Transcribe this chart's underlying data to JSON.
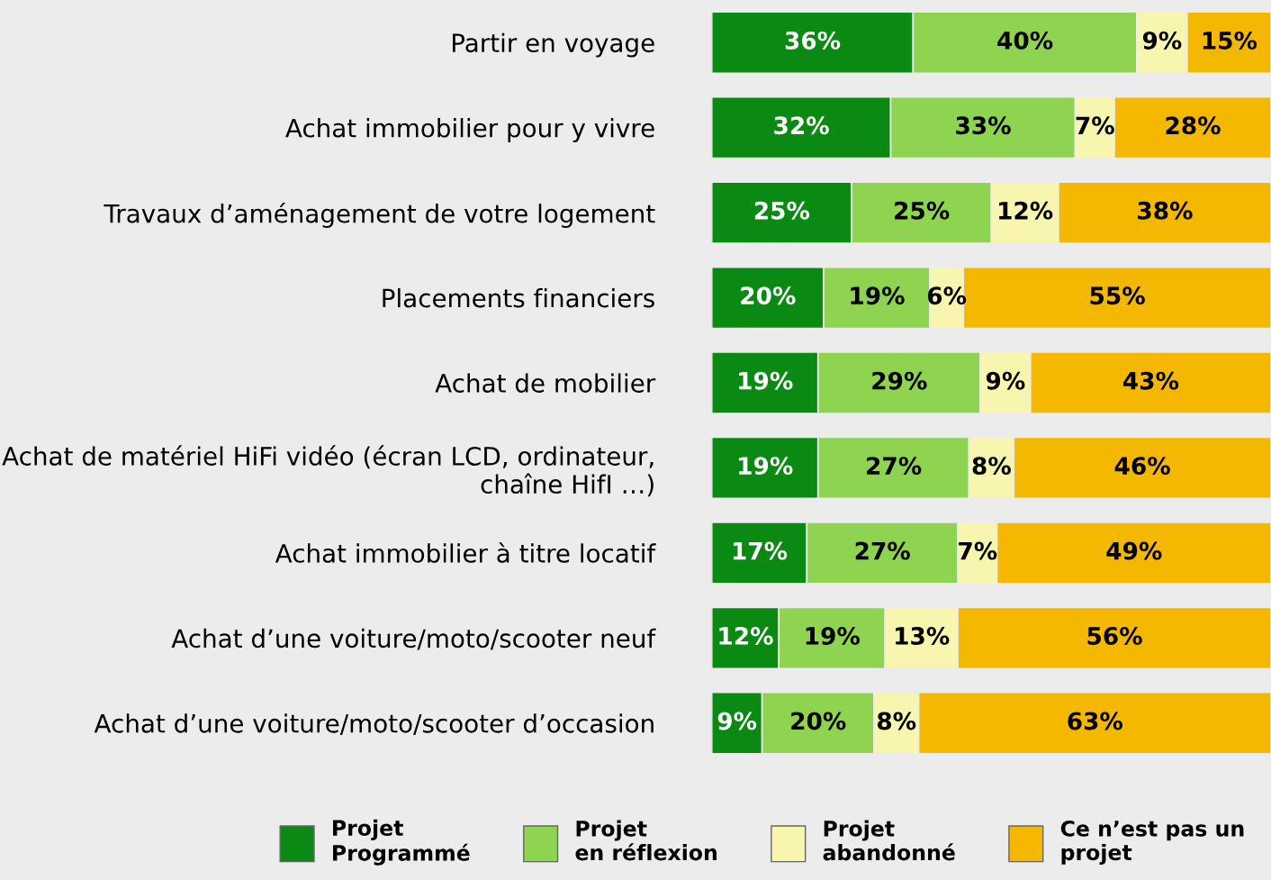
{
  "chart_data": {
    "type": "bar",
    "orientation": "horizontal",
    "stacked": true,
    "legend": "bottom",
    "grid": false,
    "tick_labels": "y",
    "categories": [
      "Partir en voyage",
      "Achat immobilier pour y vivre",
      "Travaux d’aménagement de votre logement",
      "Placements financiers",
      "Achat de mobilier",
      "Achat de matériel HiFi vidéo (écran LCD, ordinateur,\nchaîne HifI …)",
      "Achat immobilier à titre locatif",
      "Achat d’une voiture/moto/scooter neuf",
      "Achat d’une voiture/moto/scooter d’occasion"
    ],
    "series": [
      {
        "name": "Projet\nProgrammé",
        "color": "#0a8a12",
        "values": [
          36,
          32,
          25,
          20,
          19,
          19,
          17,
          12,
          9
        ],
        "value_labels": [
          "36%",
          "32%",
          "25%",
          "20%",
          "19%",
          "19%",
          "17%",
          "12%",
          "9%"
        ]
      },
      {
        "name": "Projet\nen réflexion",
        "color": "#8fd451",
        "values": [
          40,
          33,
          25,
          19,
          29,
          27,
          27,
          19,
          20
        ],
        "value_labels": [
          "40%",
          "33%",
          "25%",
          "19%",
          "29%",
          "27%",
          "27%",
          "19%",
          "20%"
        ]
      },
      {
        "name": "Projet\nabandonné",
        "color": "#f8f5ae",
        "values": [
          9,
          7,
          12,
          6,
          9,
          8,
          7,
          13,
          8
        ],
        "value_labels": [
          "9%",
          "7%",
          "12%",
          "6%",
          "9%",
          "8%",
          "7%",
          "13%",
          "8%"
        ]
      },
      {
        "name": "Ce n’est pas un\nprojet",
        "color": "#f5b800",
        "values": [
          15,
          28,
          38,
          55,
          43,
          46,
          49,
          56,
          63
        ],
        "value_labels": [
          "15%",
          "28%",
          "38%",
          "55%",
          "43%",
          "46%",
          "49%",
          "56%",
          "63%"
        ]
      }
    ]
  }
}
